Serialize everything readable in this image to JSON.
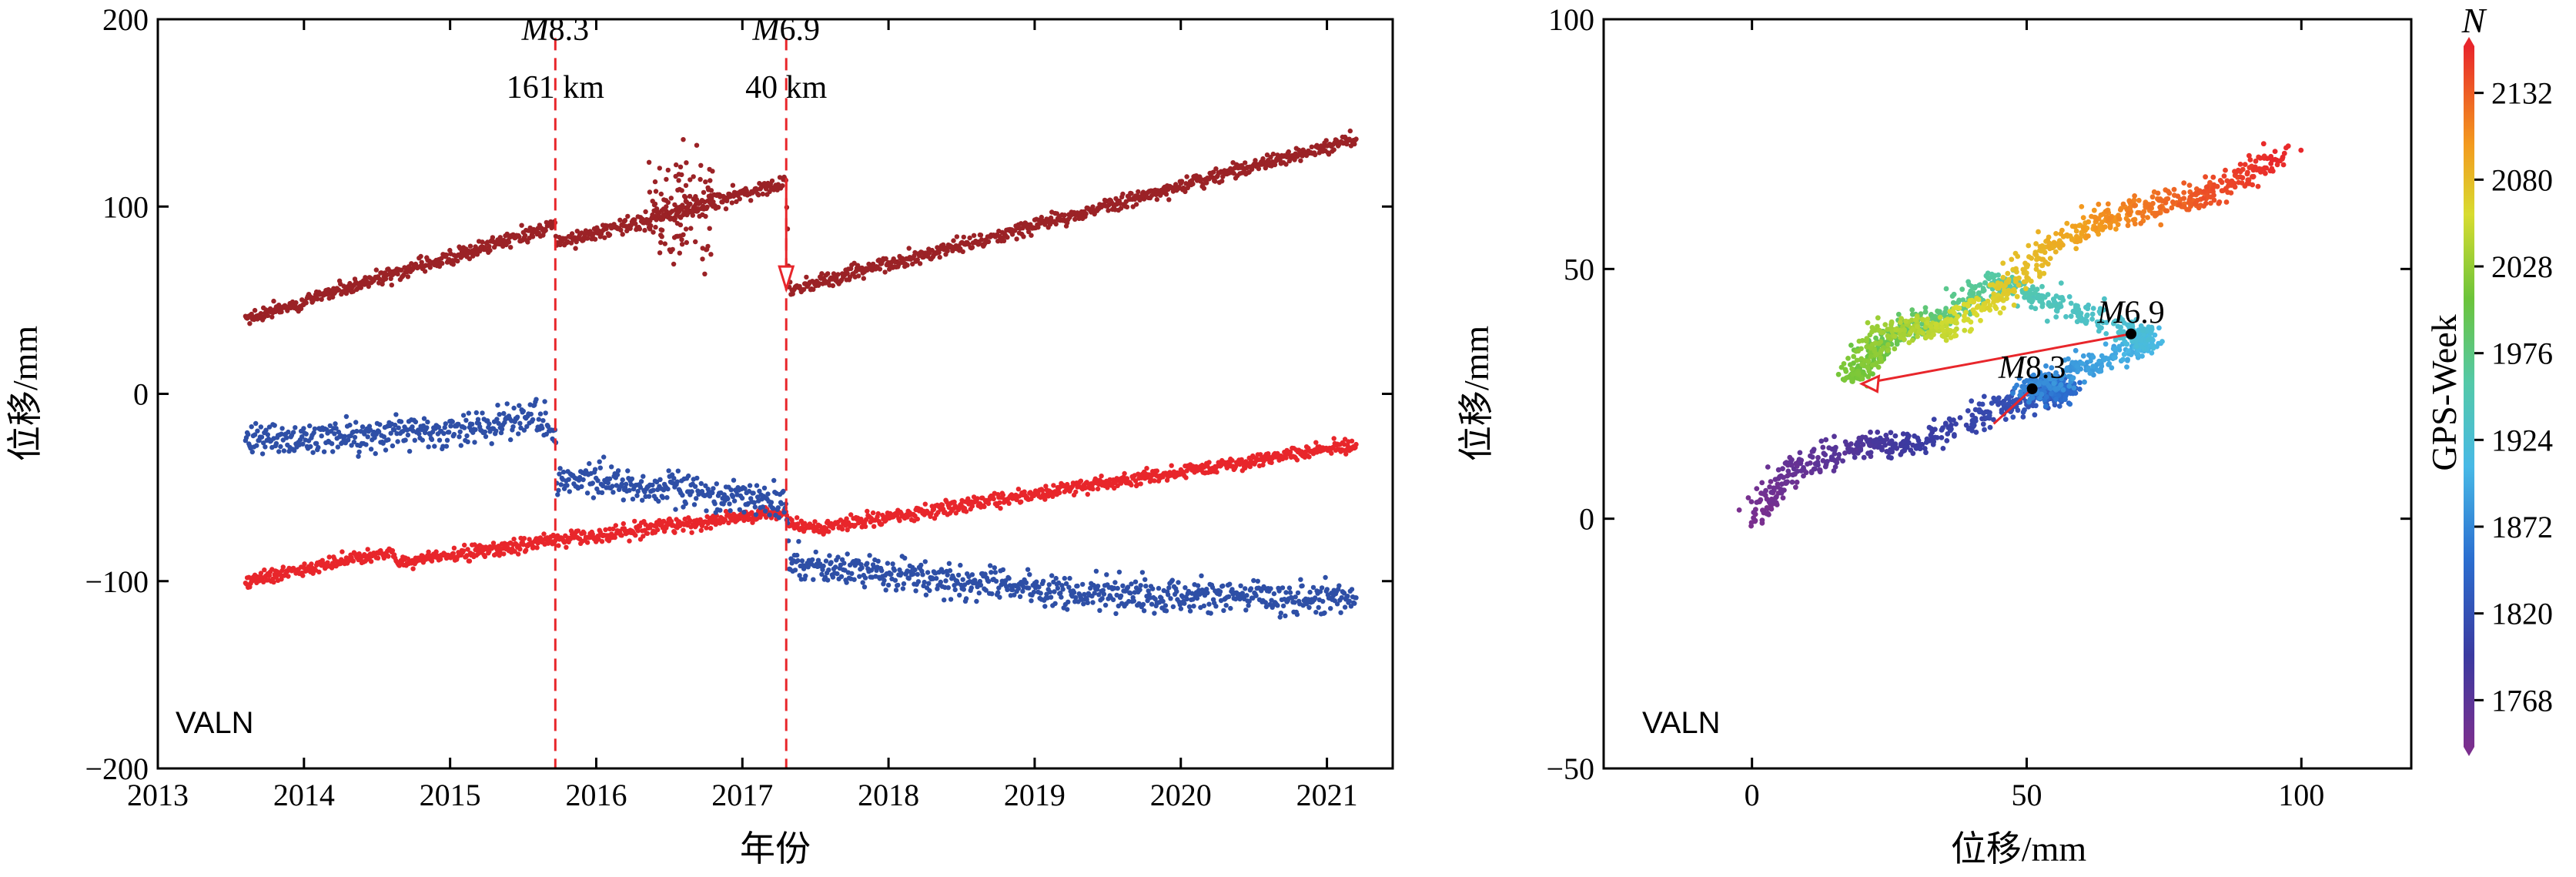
{
  "chart_data": [
    {
      "type": "scatter",
      "station_label": "VALN",
      "xlabel": "年份",
      "ylabel": "位移/mm",
      "xlim": [
        2013,
        2021.45
      ],
      "ylim": [
        -200,
        200
      ],
      "xticks": [
        {
          "v": 2013,
          "label": "2013"
        },
        {
          "v": 2014,
          "label": "2014"
        },
        {
          "v": 2015,
          "label": "2015"
        },
        {
          "v": 2016,
          "label": "2016"
        },
        {
          "v": 2017,
          "label": "2017"
        },
        {
          "v": 2018,
          "label": "2018"
        },
        {
          "v": 2019,
          "label": "2019"
        },
        {
          "v": 2020,
          "label": "2020"
        },
        {
          "v": 2021,
          "label": "2021"
        }
      ],
      "yticks": [
        {
          "v": 200,
          "label": "200"
        },
        {
          "v": 100,
          "label": "100"
        },
        {
          "v": 0,
          "label": "0"
        },
        {
          "v": -100,
          "label": "−100"
        },
        {
          "v": -200,
          "label": "−200"
        }
      ],
      "series": [
        {
          "color": "#9b2226",
          "x": [
            2013.6,
            2015.72,
            2015.73,
            2017.3,
            2017.32,
            2021.2
          ],
          "y": [
            40,
            90,
            80,
            113,
            55,
            136
          ]
        },
        {
          "color": "#e8262b",
          "x": [
            2013.6,
            2014.6,
            2014.65,
            2015.72,
            2016.0,
            2017.3,
            2017.32,
            2017.5,
            2021.2
          ],
          "y": [
            -100,
            -84,
            -90,
            -78,
            -76,
            -63,
            -70,
            -72,
            -27
          ]
        },
        {
          "color": "#2e4fa6",
          "x": [
            2013.6,
            2015.2,
            2015.6,
            2015.72,
            2015.73,
            2017.3,
            2017.32,
            2018.0,
            2019.0,
            2021.2
          ],
          "y": [
            -25,
            -18,
            -10,
            -22,
            -45,
            -57,
            -90,
            -97,
            -105,
            -110
          ]
        }
      ],
      "events": [
        {
          "x": 2015.72,
          "magnitude_prefix": "M",
          "magnitude_value": "8.3",
          "distance": "161 km"
        },
        {
          "x": 2017.3,
          "magnitude_prefix": "M",
          "magnitude_value": "6.9",
          "distance": "40 km"
        }
      ]
    },
    {
      "type": "scatter",
      "station_label": "VALN",
      "xlabel": "位移/mm",
      "ylabel": "位移/mm",
      "xlim": [
        -27,
        120
      ],
      "ylim": [
        -50,
        100
      ],
      "xticks": [
        {
          "v": 0,
          "label": "0"
        },
        {
          "v": 50,
          "label": "50"
        },
        {
          "v": 100,
          "label": "100"
        }
      ],
      "yticks": [
        {
          "v": 100,
          "label": "100"
        },
        {
          "v": 50,
          "label": "50"
        },
        {
          "v": 0,
          "label": "0"
        },
        {
          "v": -50,
          "label": "−50"
        }
      ],
      "path_x": [
        0,
        8,
        20,
        30,
        45,
        55,
        57,
        50,
        60,
        72,
        70,
        55,
        45,
        35,
        25,
        18,
        25,
        35,
        45,
        55,
        65,
        75,
        85,
        97
      ],
      "path_y": [
        0,
        10,
        15,
        15,
        22,
        25,
        26,
        26,
        30,
        35,
        37,
        43,
        48,
        40,
        37,
        28,
        38,
        38,
        45,
        55,
        60,
        63,
        66,
        73
      ],
      "events": [
        {
          "label_prefix": "M",
          "label_value": "8.3",
          "x": 51,
          "y": 26
        },
        {
          "label_prefix": "M",
          "label_value": "6.9",
          "x": 69,
          "y": 37
        }
      ],
      "colorbar": {
        "title": "GPS-Week",
        "symbol": "N",
        "min": 1740,
        "max": 2160,
        "ticks": [
          {
            "v": 1768,
            "label": "1768"
          },
          {
            "v": 1820,
            "label": "1820"
          },
          {
            "v": 1872,
            "label": "1872"
          },
          {
            "v": 1924,
            "label": "1924"
          },
          {
            "v": 1976,
            "label": "1976"
          },
          {
            "v": 2028,
            "label": "2028"
          },
          {
            "v": 2080,
            "label": "2080"
          },
          {
            "v": 2132,
            "label": "2132"
          }
        ]
      }
    }
  ]
}
